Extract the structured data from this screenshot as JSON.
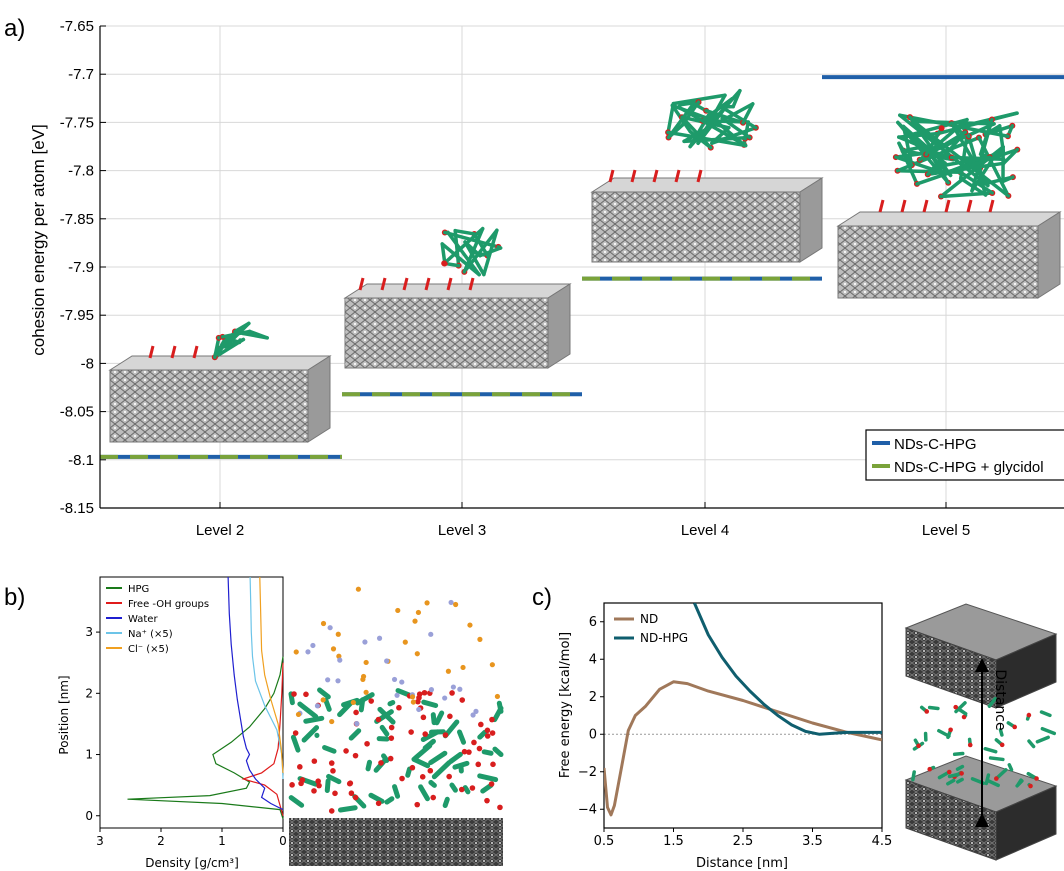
{
  "panels": {
    "a": {
      "label": "a)"
    },
    "b": {
      "label": "b)"
    },
    "c": {
      "label": "c)"
    }
  },
  "colors": {
    "blue": "#1f5fa8",
    "green": "#7aa33a",
    "hpg": "#1a7a1a",
    "oh": "#e01b1b",
    "water": "#1f1fd0",
    "na": "#6cc4e8",
    "cl": "#f0a020",
    "nd": "#a0785a",
    "ndhpg": "#0f5e6e",
    "grid": "#d8d8d8"
  },
  "chart_data": [
    {
      "id": "a",
      "type": "line",
      "title": "",
      "xlabel": "",
      "ylabel": "cohesion energy per atom [eV]",
      "categories": [
        "Level 2",
        "Level 3",
        "Level 4",
        "Level 5"
      ],
      "ylim": [
        -8.15,
        -7.65
      ],
      "yticks": [
        -7.65,
        -7.7,
        -7.75,
        -7.8,
        -7.85,
        -7.9,
        -7.95,
        -8,
        -8.05,
        -8.1,
        -8.15
      ],
      "ytick_labels": [
        "-7.65",
        "-7.7",
        "-7.75",
        "-7.8",
        "-7.85",
        "-7.9",
        "-7.95",
        "-8",
        "-8.05",
        "-8.1",
        "-8.15"
      ],
      "grid": true,
      "legend_position": "bottom-right",
      "series": [
        {
          "name": "NDs-C-HPG",
          "values": [
            -8.097,
            -8.032,
            -7.912,
            -7.703
          ]
        },
        {
          "name": "NDs-C-HPG + glycidol",
          "values": [
            -8.097,
            -8.032,
            -7.912,
            null
          ]
        }
      ]
    },
    {
      "id": "b",
      "type": "line",
      "xlabel": "Density [g/cm³]",
      "ylabel": "Position [nm]",
      "xlim": [
        3,
        0
      ],
      "ylim": [
        -0.2,
        3.9
      ],
      "xticks": [
        3,
        2,
        1,
        0
      ],
      "xtick_labels": [
        "3",
        "2",
        "1",
        "0"
      ],
      "yticks": [
        0,
        1,
        2,
        3
      ],
      "ytick_labels": [
        "0",
        "1",
        "2",
        "3"
      ],
      "legend_position": "top-left",
      "series": [
        {
          "name": "HPG",
          "points": [
            [
              0,
              -0.05
            ],
            [
              0.05,
              0.1
            ],
            [
              1.0,
              0.2
            ],
            [
              2.55,
              0.27
            ],
            [
              1.2,
              0.33
            ],
            [
              0.6,
              0.45
            ],
            [
              0.55,
              0.55
            ],
            [
              0.8,
              0.7
            ],
            [
              1.1,
              0.85
            ],
            [
              1.15,
              1.0
            ],
            [
              0.85,
              1.2
            ],
            [
              0.55,
              1.45
            ],
            [
              0.3,
              1.75
            ],
            [
              0.15,
              2.0
            ],
            [
              0.05,
              2.3
            ],
            [
              0,
              2.6
            ]
          ]
        },
        {
          "name": "Free -OH groups",
          "points": [
            [
              0,
              0.0
            ],
            [
              0.1,
              0.35
            ],
            [
              0.3,
              0.5
            ],
            [
              0.65,
              0.6
            ],
            [
              0.35,
              0.7
            ],
            [
              0.15,
              0.85
            ],
            [
              0.08,
              1.1
            ],
            [
              0.05,
              1.5
            ],
            [
              0.02,
              2.0
            ],
            [
              0,
              2.5
            ]
          ]
        },
        {
          "name": "Water",
          "points": [
            [
              0,
              0.1
            ],
            [
              0.2,
              0.2
            ],
            [
              0.35,
              0.3
            ],
            [
              0.3,
              0.45
            ],
            [
              0.45,
              0.6
            ],
            [
              0.55,
              0.75
            ],
            [
              0.6,
              0.9
            ],
            [
              0.55,
              1.0
            ],
            [
              0.6,
              1.1
            ],
            [
              0.65,
              1.3
            ],
            [
              0.7,
              1.6
            ],
            [
              0.75,
              1.9
            ],
            [
              0.8,
              2.3
            ],
            [
              0.85,
              2.8
            ],
            [
              0.88,
              3.3
            ],
            [
              0.9,
              3.9
            ]
          ]
        },
        {
          "name": "Na⁺ (×5)",
          "points": [
            [
              0,
              0.6
            ],
            [
              0.02,
              1.0
            ],
            [
              0.1,
              1.4
            ],
            [
              0.3,
              1.8
            ],
            [
              0.45,
              2.2
            ],
            [
              0.5,
              2.6
            ],
            [
              0.52,
              3.0
            ],
            [
              0.53,
              3.5
            ],
            [
              0.54,
              3.9
            ]
          ]
        },
        {
          "name": "Cl⁻  (×5)",
          "points": [
            [
              0,
              0.7
            ],
            [
              0.03,
              1.1
            ],
            [
              0.08,
              1.5
            ],
            [
              0.2,
              1.9
            ],
            [
              0.3,
              2.3
            ],
            [
              0.35,
              2.7
            ],
            [
              0.36,
              3.1
            ],
            [
              0.37,
              3.5
            ],
            [
              0.38,
              3.9
            ]
          ]
        }
      ]
    },
    {
      "id": "c",
      "type": "line",
      "xlabel": "Distance [nm]",
      "ylabel": "Free energy [kcal/mol]",
      "xlim": [
        0.5,
        4.5
      ],
      "ylim": [
        -5,
        7
      ],
      "xticks": [
        0.5,
        1.5,
        2.5,
        3.5,
        4.5
      ],
      "xtick_labels": [
        "0.5",
        "1.5",
        "2.5",
        "3.5",
        "4.5"
      ],
      "yticks": [
        -4,
        -2,
        0,
        2,
        4,
        6
      ],
      "ytick_labels": [
        "−4",
        "−2",
        "0",
        "2",
        "4",
        "6"
      ],
      "legend_position": "top-left",
      "series": [
        {
          "name": "ND",
          "points": [
            [
              0.5,
              -1.8
            ],
            [
              0.55,
              -3.9
            ],
            [
              0.6,
              -4.3
            ],
            [
              0.65,
              -3.8
            ],
            [
              0.75,
              -1.8
            ],
            [
              0.85,
              0.2
            ],
            [
              0.95,
              1.0
            ],
            [
              1.1,
              1.5
            ],
            [
              1.3,
              2.4
            ],
            [
              1.5,
              2.8
            ],
            [
              1.7,
              2.7
            ],
            [
              2.0,
              2.3
            ],
            [
              2.5,
              1.8
            ],
            [
              3.0,
              1.2
            ],
            [
              3.5,
              0.6
            ],
            [
              4.0,
              0.1
            ],
            [
              4.5,
              -0.3
            ]
          ]
        },
        {
          "name": "ND-HPG",
          "points": [
            [
              1.8,
              7.0
            ],
            [
              2.0,
              5.3
            ],
            [
              2.2,
              4.1
            ],
            [
              2.4,
              3.1
            ],
            [
              2.6,
              2.3
            ],
            [
              2.8,
              1.6
            ],
            [
              3.0,
              1.0
            ],
            [
              3.2,
              0.5
            ],
            [
              3.4,
              0.15
            ],
            [
              3.6,
              0.0
            ],
            [
              3.8,
              0.05
            ],
            [
              4.0,
              0.1
            ],
            [
              4.2,
              0.1
            ],
            [
              4.5,
              0.1
            ]
          ]
        }
      ]
    }
  ],
  "structures": {
    "distance_label": "Distance"
  }
}
